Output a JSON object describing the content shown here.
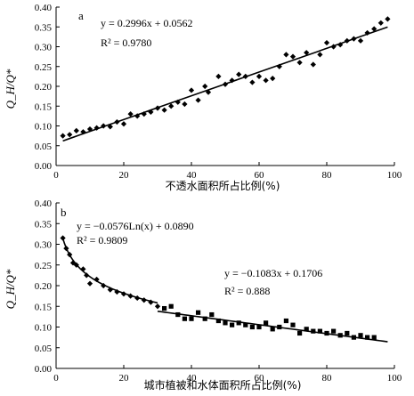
{
  "chart_data": [
    {
      "type": "scatter",
      "panel_label": "a",
      "xlabel": "不透水面积所占比例(%)",
      "ylabel": "Q_H/Q*",
      "xlim": [
        0,
        100
      ],
      "ylim": [
        0,
        0.4
      ],
      "xticks": [
        0,
        20,
        40,
        60,
        80,
        100
      ],
      "yticks": [
        0.0,
        0.05,
        0.1,
        0.15,
        0.2,
        0.25,
        0.3,
        0.35,
        0.4
      ],
      "marker": "diamond",
      "annotations": [
        {
          "text": "y = 0.2996x + 0.0562"
        },
        {
          "text": "R² = 0.9780"
        }
      ],
      "fits": [
        {
          "kind": "linear",
          "slope": 0.2996,
          "intercept": 0.0562,
          "x_range": [
            2,
            98
          ]
        }
      ],
      "points": [
        [
          2,
          0.075
        ],
        [
          4,
          0.078
        ],
        [
          6,
          0.088
        ],
        [
          8,
          0.085
        ],
        [
          10,
          0.092
        ],
        [
          12,
          0.095
        ],
        [
          14,
          0.1
        ],
        [
          16,
          0.098
        ],
        [
          18,
          0.11
        ],
        [
          20,
          0.105
        ],
        [
          22,
          0.13
        ],
        [
          24,
          0.125
        ],
        [
          26,
          0.13
        ],
        [
          28,
          0.135
        ],
        [
          30,
          0.145
        ],
        [
          32,
          0.14
        ],
        [
          34,
          0.15
        ],
        [
          36,
          0.16
        ],
        [
          38,
          0.155
        ],
        [
          40,
          0.19
        ],
        [
          42,
          0.165
        ],
        [
          44,
          0.2
        ],
        [
          45,
          0.185
        ],
        [
          48,
          0.225
        ],
        [
          50,
          0.205
        ],
        [
          52,
          0.215
        ],
        [
          54,
          0.23
        ],
        [
          56,
          0.225
        ],
        [
          58,
          0.21
        ],
        [
          60,
          0.225
        ],
        [
          62,
          0.215
        ],
        [
          64,
          0.22
        ],
        [
          66,
          0.25
        ],
        [
          68,
          0.28
        ],
        [
          70,
          0.275
        ],
        [
          72,
          0.26
        ],
        [
          74,
          0.285
        ],
        [
          76,
          0.255
        ],
        [
          78,
          0.28
        ],
        [
          80,
          0.31
        ],
        [
          82,
          0.3
        ],
        [
          84,
          0.305
        ],
        [
          86,
          0.315
        ],
        [
          88,
          0.32
        ],
        [
          90,
          0.315
        ],
        [
          92,
          0.335
        ],
        [
          94,
          0.345
        ],
        [
          96,
          0.36
        ],
        [
          98,
          0.37
        ]
      ]
    },
    {
      "type": "scatter",
      "panel_label": "b",
      "xlabel": "城市植被和水体面积所占比例(%)",
      "ylabel": "Q_H/Q*",
      "xlim": [
        0,
        100
      ],
      "ylim": [
        0,
        0.4
      ],
      "xticks": [
        0,
        20,
        40,
        60,
        80,
        100
      ],
      "yticks": [
        0.0,
        0.05,
        0.1,
        0.15,
        0.2,
        0.25,
        0.3,
        0.35,
        0.4
      ],
      "annotations": [
        {
          "text": "y = −0.0576Ln(x) + 0.0890"
        },
        {
          "text": "R² = 0.9809"
        },
        {
          "text": "y = −0.1083x + 0.1706"
        },
        {
          "text": "R² = 0.888"
        }
      ],
      "fits": [
        {
          "kind": "log",
          "a": -0.0576,
          "b": 0.089,
          "x_range": [
            2,
            30
          ]
        },
        {
          "kind": "linear",
          "slope": -0.1083,
          "intercept": 0.1706,
          "x_range": [
            30,
            98
          ]
        }
      ],
      "series": [
        {
          "marker": "diamond",
          "points": [
            [
              2,
              0.315
            ],
            [
              3,
              0.29
            ],
            [
              4,
              0.275
            ],
            [
              5,
              0.255
            ],
            [
              6,
              0.25
            ],
            [
              8,
              0.24
            ],
            [
              9,
              0.225
            ],
            [
              10,
              0.205
            ],
            [
              12,
              0.215
            ],
            [
              14,
              0.2
            ],
            [
              16,
              0.19
            ],
            [
              18,
              0.185
            ],
            [
              20,
              0.18
            ],
            [
              22,
              0.175
            ],
            [
              24,
              0.17
            ],
            [
              26,
              0.165
            ],
            [
              28,
              0.16
            ],
            [
              30,
              0.15
            ]
          ]
        },
        {
          "marker": "square",
          "points": [
            [
              32,
              0.145
            ],
            [
              34,
              0.15
            ],
            [
              36,
              0.13
            ],
            [
              38,
              0.12
            ],
            [
              40,
              0.12
            ],
            [
              42,
              0.135
            ],
            [
              44,
              0.12
            ],
            [
              46,
              0.13
            ],
            [
              48,
              0.115
            ],
            [
              50,
              0.11
            ],
            [
              52,
              0.105
            ],
            [
              54,
              0.11
            ],
            [
              56,
              0.105
            ],
            [
              58,
              0.1
            ],
            [
              60,
              0.1
            ],
            [
              62,
              0.11
            ],
            [
              64,
              0.095
            ],
            [
              66,
              0.1
            ],
            [
              68,
              0.115
            ],
            [
              70,
              0.105
            ],
            [
              72,
              0.085
            ],
            [
              74,
              0.095
            ],
            [
              76,
              0.09
            ],
            [
              78,
              0.09
            ],
            [
              80,
              0.085
            ],
            [
              82,
              0.09
            ],
            [
              84,
              0.08
            ],
            [
              86,
              0.085
            ],
            [
              88,
              0.075
            ],
            [
              90,
              0.08
            ],
            [
              92,
              0.075
            ],
            [
              94,
              0.075
            ]
          ]
        }
      ]
    }
  ]
}
